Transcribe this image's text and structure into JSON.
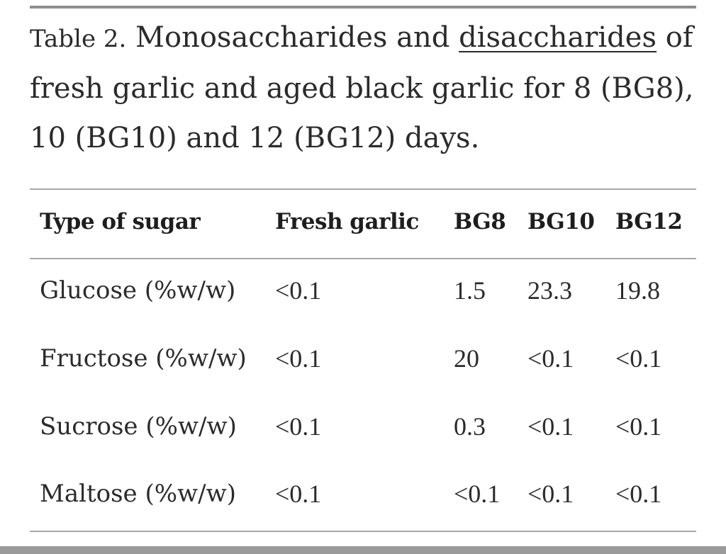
{
  "caption": {
    "prefix": "Table 2.",
    "text_before_link": " Monosaccharides and ",
    "link": "disaccharides",
    "text_after_link": " of fresh garlic and aged black garlic for 8 (BG8), 10 (BG10) and 12 (BG12) days."
  },
  "table": {
    "headers": [
      "Type of sugar",
      "Fresh garlic",
      "BG8",
      "BG10",
      "BG12"
    ],
    "rows": [
      [
        "Glucose (%w/w)",
        "<0.1",
        "1.5",
        "23.3",
        "19.8"
      ],
      [
        "Fructose (%w/w)",
        "<0.1",
        "20",
        "<0.1",
        "<0.1"
      ],
      [
        "Sucrose (%w/w)",
        "<0.1",
        "0.3",
        "<0.1",
        "<0.1"
      ],
      [
        "Maltose (%w/w)",
        "<0.1",
        "<0.1",
        "<0.1",
        "<0.1"
      ]
    ]
  }
}
